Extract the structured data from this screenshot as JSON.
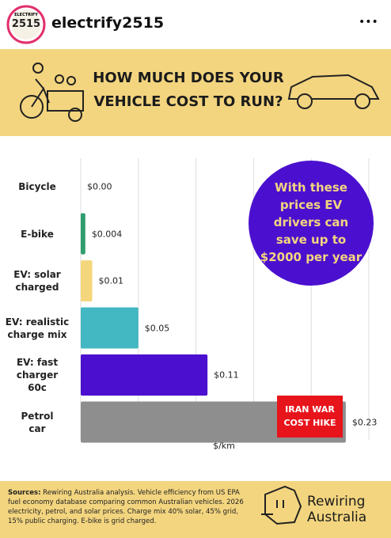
{
  "header": {
    "username": "electrify2515",
    "avatar_top": "ELECTRIFY",
    "avatar_main": "2515",
    "menu": "•••"
  },
  "banner": {
    "title_line1": "HOW MUCH DOES YOUR",
    "title_line2": "VEHICLE COST TO RUN?"
  },
  "chart_data": {
    "type": "hbar",
    "categories": [
      "Bicycle",
      "E-bike",
      "EV: solar\ncharged",
      "EV: realistic\ncharge mix",
      "EV: fast\ncharger\n60c",
      "Petrol\ncar"
    ],
    "values": [
      0,
      0.004,
      0.01,
      0.05,
      0.11,
      0.23
    ],
    "value_labels": [
      "$0.00",
      "$0.004",
      "$0.01",
      "$0.05",
      "$0.11",
      "$0.23"
    ],
    "colors": [
      "#ffffff",
      "#2f9e6c",
      "#f4d77c",
      "#43b7c2",
      "#4b10cf",
      "#8e8e8e"
    ],
    "xlim": [
      0,
      0.25
    ],
    "xticks": [
      0,
      0.05,
      0.1,
      0.15,
      0.2,
      0.25
    ],
    "grid": true,
    "xlabel": "$/km",
    "annotations": [
      "With these\nprices EV\ndrivers can\nsave up to\n$2000 per year",
      "IRAN WAR\nCOST HIKE"
    ]
  },
  "footer": {
    "sources_label": "Sources:",
    "sources_text": " Rewiring Australia analysis. Vehicle efficiency from US EPA fuel economy database comparing common Australian vehicles. 2026 electricity, petrol, and solar prices. Charge mix 40% solar, 45% grid, 15% public charging. E-bike is grid charged.",
    "logo_text": "Rewiring\nAustralia"
  }
}
